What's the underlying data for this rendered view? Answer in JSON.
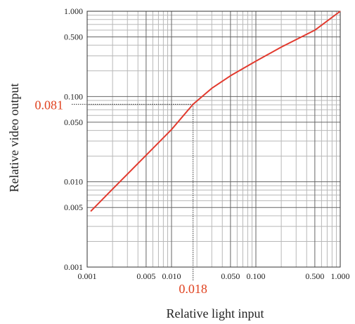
{
  "chart_data": {
    "type": "line",
    "title": "",
    "xlabel": "Relative light input",
    "ylabel": "Relative video output",
    "xscale": "log",
    "yscale": "log",
    "xlim": [
      0.001,
      1.0
    ],
    "ylim": [
      0.001,
      1.0
    ],
    "grid": true,
    "x_ticks": [
      "0.001",
      "0.005",
      "0.010",
      "0.050",
      "0.100",
      "0.500",
      "1.000"
    ],
    "y_ticks": [
      "0.001",
      "0.005",
      "0.010",
      "0.050",
      "0.100",
      "0.500",
      "1.000"
    ],
    "series": [
      {
        "color": "#e23a2e",
        "x": [
          0.0011,
          0.002,
          0.005,
          0.01,
          0.018,
          0.03,
          0.05,
          0.1,
          0.2,
          0.5,
          1.0
        ],
        "y": [
          0.0045,
          0.0082,
          0.0205,
          0.041,
          0.081,
          0.125,
          0.175,
          0.26,
          0.38,
          0.6,
          1.0
        ]
      }
    ],
    "annotations": [
      {
        "axis": "y",
        "value": 0.081,
        "label": "0.081",
        "color": "#e0421f"
      },
      {
        "axis": "x",
        "value": 0.018,
        "label": "0.018",
        "color": "#e0421f"
      }
    ]
  }
}
